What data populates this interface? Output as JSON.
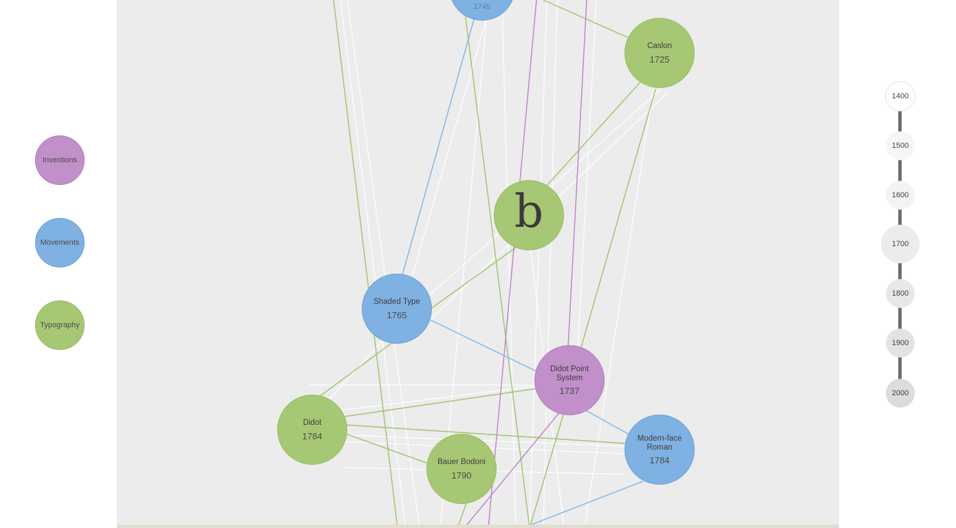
{
  "legend": {
    "inventions": {
      "label": "Inventions",
      "color": "#c18fca"
    },
    "movements": {
      "label": "Movements",
      "color": "#7fb1e2"
    },
    "typography": {
      "label": "Typography",
      "color": "#a6c874"
    }
  },
  "timeline": [
    "1400",
    "1500",
    "1600",
    "1700",
    "1800",
    "1900",
    "2000"
  ],
  "nodes": {
    "top_partial": {
      "name": "",
      "year": "1745",
      "category": "movements"
    },
    "caslon": {
      "name": "Caslon",
      "year": "1725",
      "category": "typography"
    },
    "b_glyph": {
      "glyph": "b",
      "category": "typography"
    },
    "shaded_type": {
      "name": "Shaded Type",
      "year": "1765",
      "category": "movements"
    },
    "didot_point": {
      "name": "Didot Point System",
      "year": "1737",
      "category": "inventions"
    },
    "didot": {
      "name": "Didot",
      "year": "1784",
      "category": "typography"
    },
    "bauer_bodoni": {
      "name": "Bauer Bodoni",
      "year": "1790",
      "category": "typography"
    },
    "modern_face": {
      "name": "Modern-face Roman",
      "year": "1784",
      "category": "movements"
    }
  }
}
